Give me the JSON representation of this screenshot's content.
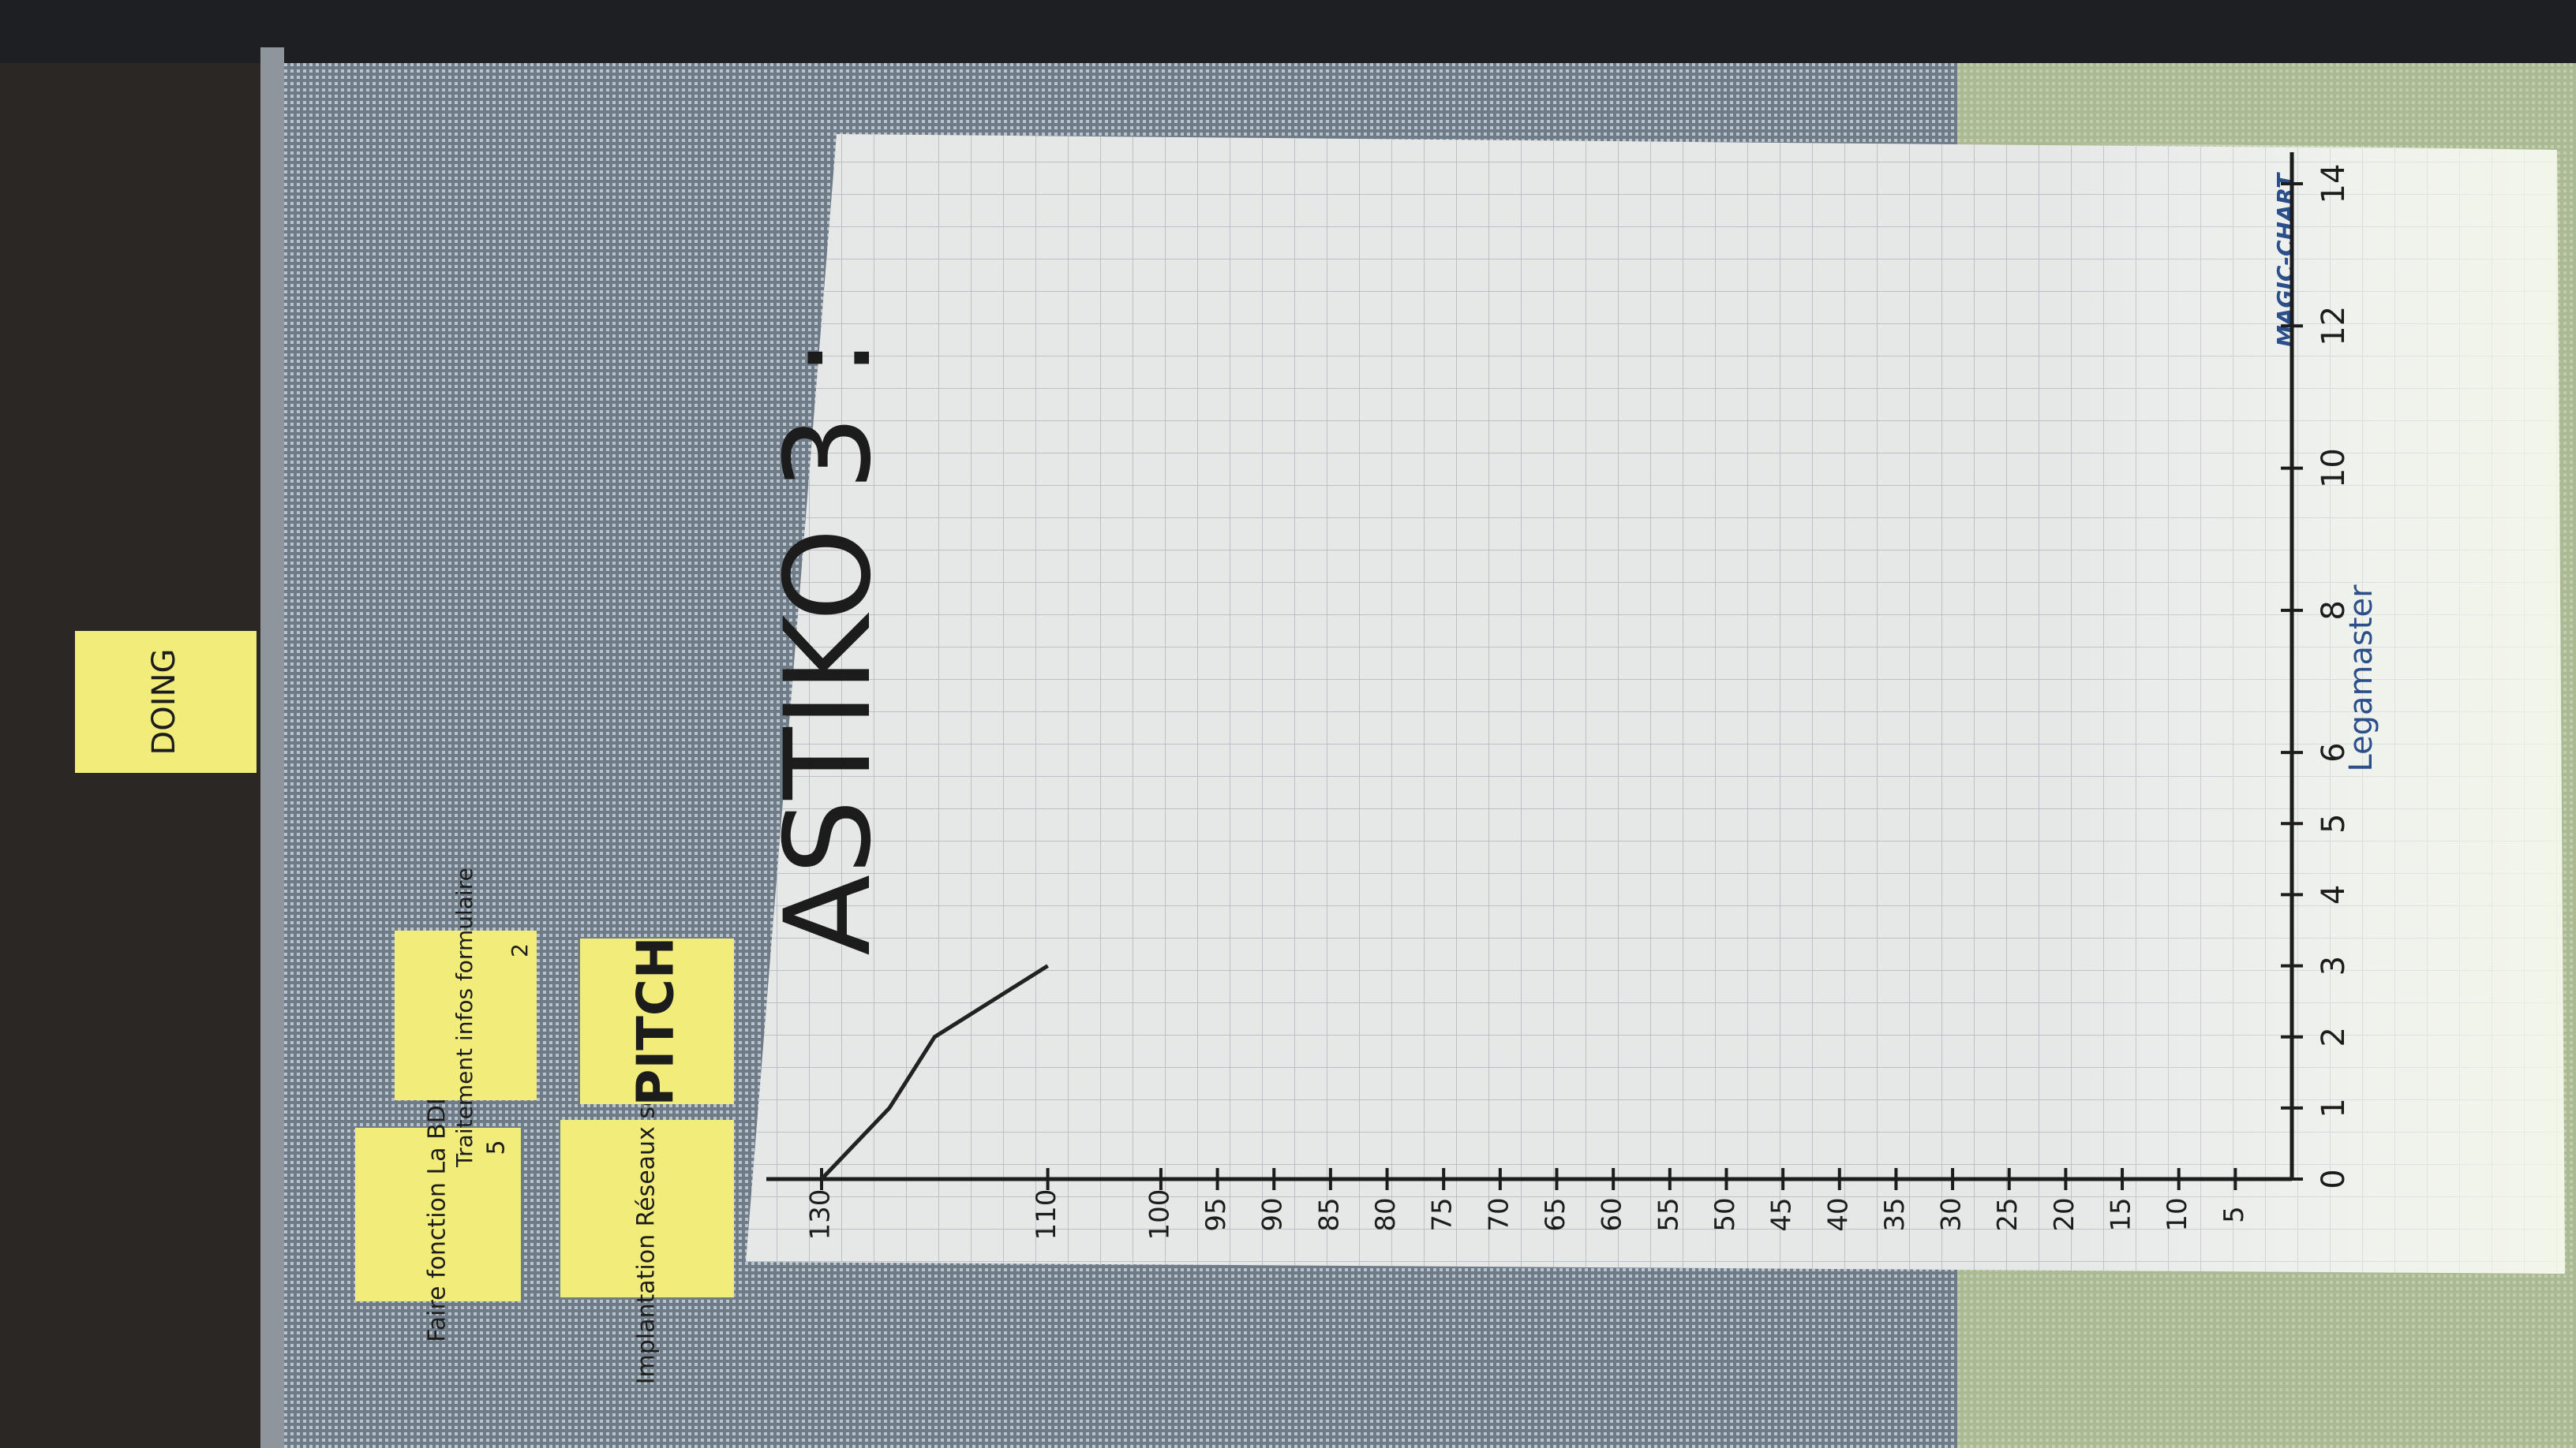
{
  "board": {
    "column_label": "DOING",
    "notes": [
      {
        "text": "Faire fonction La BDD",
        "points": "5"
      },
      {
        "text": "Traitement infos formulaire",
        "points": "2"
      },
      {
        "text": "Implantation Réseaux sociaux"
      },
      {
        "text": "PITCH"
      }
    ]
  },
  "flipchart": {
    "brand": "Legamaster",
    "product": "MAGIC-CHART"
  },
  "chart_data": {
    "type": "line",
    "title": "ASTIKO 3 :",
    "x": [
      0,
      1,
      2,
      3
    ],
    "series": [
      {
        "color": "#222222",
        "values": [
          130,
          124,
          120,
          110
        ]
      }
    ],
    "xlim": [
      0,
      14
    ],
    "xticks": [
      0,
      1,
      2,
      3,
      4,
      5,
      6,
      8,
      10,
      12,
      14
    ],
    "ylim": [
      0,
      130
    ],
    "yticks": [
      130,
      110,
      100,
      95,
      90,
      85,
      80,
      75,
      70,
      65,
      60,
      55,
      50,
      45,
      40,
      35,
      30,
      25,
      20,
      15,
      10,
      5
    ],
    "grid": true
  }
}
